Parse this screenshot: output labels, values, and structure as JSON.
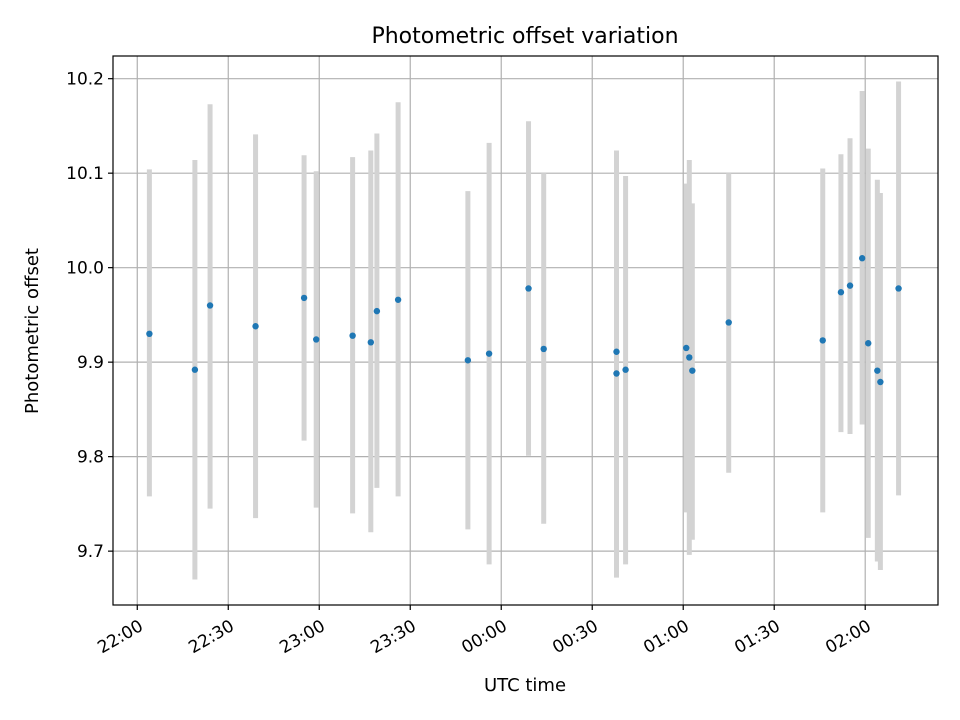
{
  "chart_data": {
    "type": "scatter",
    "title": "Photometric offset variation",
    "xlabel": "UTC time",
    "ylabel": "Photometric offset",
    "xlim": [
      "21:52",
      "02:24"
    ],
    "ylim": [
      9.643,
      10.224
    ],
    "grid": true,
    "legend": "none",
    "x_ticks": [
      "22:00",
      "22:30",
      "23:00",
      "23:30",
      "00:00",
      "00:30",
      "01:00",
      "01:30",
      "02:00"
    ],
    "y_ticks": [
      "9.7",
      "9.8",
      "9.9",
      "10.0",
      "10.1",
      "10.2"
    ],
    "colors": {
      "points": "#1f77b4",
      "error_bars": "#d3d3d3",
      "grid": "#b0b0b0"
    },
    "series": [
      {
        "points": [
          {
            "x": "22:04",
            "y": 9.93,
            "ylo": 9.758,
            "yhi": 10.104
          },
          {
            "x": "22:19",
            "y": 9.892,
            "ylo": 9.67,
            "yhi": 10.114
          },
          {
            "x": "22:24",
            "y": 9.96,
            "ylo": 9.745,
            "yhi": 10.173
          },
          {
            "x": "22:39",
            "y": 9.938,
            "ylo": 9.735,
            "yhi": 10.141
          },
          {
            "x": "22:55",
            "y": 9.968,
            "ylo": 9.817,
            "yhi": 10.119
          },
          {
            "x": "22:59",
            "y": 9.924,
            "ylo": 9.746,
            "yhi": 10.102
          },
          {
            "x": "23:11",
            "y": 9.928,
            "ylo": 9.74,
            "yhi": 10.117
          },
          {
            "x": "23:17",
            "y": 9.921,
            "ylo": 9.72,
            "yhi": 10.124
          },
          {
            "x": "23:19",
            "y": 9.954,
            "ylo": 9.767,
            "yhi": 10.142
          },
          {
            "x": "23:26",
            "y": 9.966,
            "ylo": 9.758,
            "yhi": 10.175
          },
          {
            "x": "23:49",
            "y": 9.902,
            "ylo": 9.723,
            "yhi": 10.081
          },
          {
            "x": "23:56",
            "y": 9.909,
            "ylo": 9.686,
            "yhi": 10.132
          },
          {
            "x": "00:09",
            "y": 9.978,
            "ylo": 9.801,
            "yhi": 10.155
          },
          {
            "x": "00:14",
            "y": 9.914,
            "ylo": 9.729,
            "yhi": 10.1
          },
          {
            "x": "00:38",
            "y": 9.911,
            "ylo": 9.697,
            "yhi": 10.124
          },
          {
            "x": "00:38",
            "y": 9.888,
            "ylo": 9.672,
            "yhi": 10.104
          },
          {
            "x": "00:41",
            "y": 9.892,
            "ylo": 9.686,
            "yhi": 10.097
          },
          {
            "x": "01:01",
            "y": 9.915,
            "ylo": 9.741,
            "yhi": 10.089
          },
          {
            "x": "01:02",
            "y": 9.905,
            "ylo": 9.696,
            "yhi": 10.114
          },
          {
            "x": "01:03",
            "y": 9.891,
            "ylo": 9.712,
            "yhi": 10.068
          },
          {
            "x": "01:15",
            "y": 9.942,
            "ylo": 9.783,
            "yhi": 10.1
          },
          {
            "x": "01:46",
            "y": 9.923,
            "ylo": 9.741,
            "yhi": 10.105
          },
          {
            "x": "01:52",
            "y": 9.974,
            "ylo": 9.826,
            "yhi": 10.12
          },
          {
            "x": "01:55",
            "y": 9.981,
            "ylo": 9.824,
            "yhi": 10.137
          },
          {
            "x": "01:59",
            "y": 10.01,
            "ylo": 9.834,
            "yhi": 10.187
          },
          {
            "x": "02:01",
            "y": 9.92,
            "ylo": 9.714,
            "yhi": 10.126
          },
          {
            "x": "02:04",
            "y": 9.891,
            "ylo": 9.689,
            "yhi": 10.093
          },
          {
            "x": "02:05",
            "y": 9.879,
            "ylo": 9.68,
            "yhi": 10.079
          },
          {
            "x": "02:11",
            "y": 9.978,
            "ylo": 9.759,
            "yhi": 10.197
          }
        ]
      }
    ]
  }
}
